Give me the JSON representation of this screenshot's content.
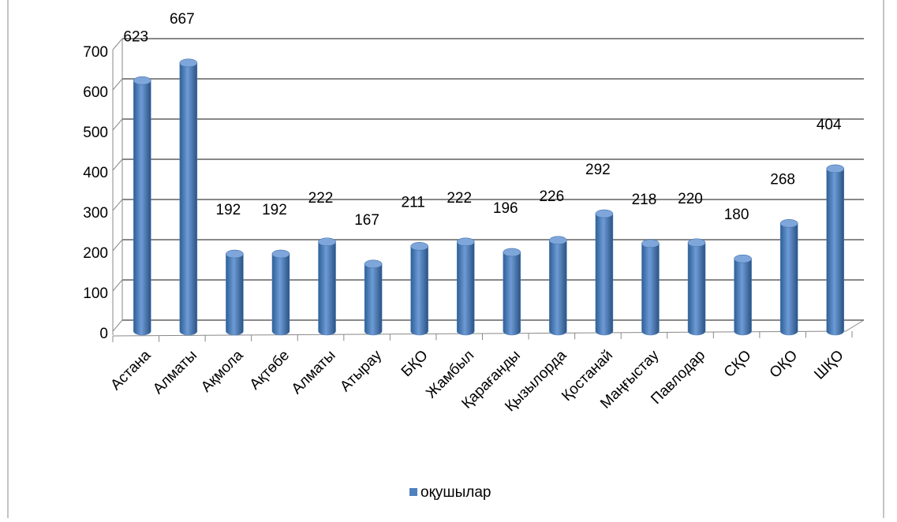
{
  "chart_data": {
    "type": "bar",
    "categories": [
      "Астана",
      "Алматы",
      "Ақмола",
      "Ақтөбе",
      "Алматы",
      "Атырау",
      "БҚО",
      "Жамбыл",
      "Қарағанды",
      "Қызылорда",
      "Қостанай",
      "Маңғыстау",
      "Павлодар",
      "СҚО",
      "ОҚО",
      "ШҚО"
    ],
    "series": [
      {
        "name": "оқушылар",
        "color": "#4f81bd",
        "values": [
          623,
          667,
          192,
          192,
          222,
          167,
          211,
          222,
          196,
          226,
          292,
          218,
          220,
          180,
          268,
          404
        ]
      }
    ],
    "ylim": [
      0,
      700
    ],
    "yticks": [
      0,
      100,
      200,
      300,
      400,
      500,
      600,
      700
    ],
    "grid": true,
    "legend": "bottom"
  }
}
